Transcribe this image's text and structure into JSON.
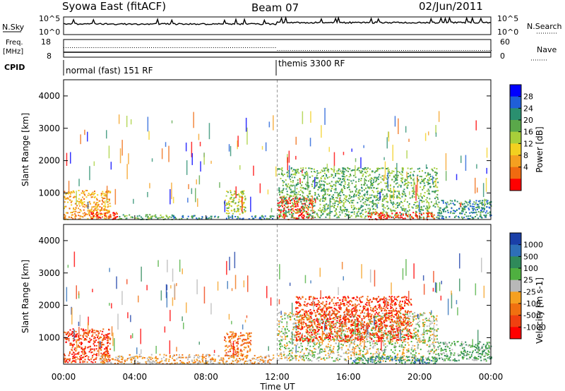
{
  "header": {
    "title": "Syowa East (fitACF)",
    "beam": "Beam 07",
    "date": "02/Jun/2011"
  },
  "strips": {
    "nsky_label": "N.Sky",
    "nsky_ticks": [
      "10^5",
      "10^0"
    ],
    "nsearch_label": "N.Search",
    "nsearch_ticks": [
      "10^5",
      "10^0"
    ],
    "freq_label": "Freq.",
    "freq_unit": "[MHz]",
    "freq_ticks": [
      "18",
      "8"
    ],
    "nave_label": "Nave",
    "nave_ticks": [
      "60",
      "0"
    ],
    "cpid_label": "CPID",
    "cpid_segments": [
      {
        "label": "normal (fast) 151 RF",
        "start_hour": 0,
        "end_hour": 12
      },
      {
        "label": "themis 3300 RF",
        "start_hour": 12,
        "end_hour": 24
      }
    ]
  },
  "chart_data": [
    {
      "type": "heatmap",
      "name": "power",
      "ylabel": "Slant Range [km]",
      "xlim": [
        0,
        24
      ],
      "ylim": [
        180,
        4500
      ],
      "yticks": [
        "1000",
        "2000",
        "3000",
        "4000"
      ],
      "colorbar": {
        "label": "Power [dB]",
        "ticks": [
          "4",
          "8",
          "12",
          "16",
          "20",
          "24",
          "28"
        ],
        "colors": [
          "#0000ff",
          "#1f5fd8",
          "#2a8f6f",
          "#5aa84a",
          "#a8cf3a",
          "#f2d020",
          "#f5a020",
          "#f06a10",
          "#ff0000"
        ]
      },
      "regions": [
        {
          "t0": 0.0,
          "t1": 2.6,
          "r0": 200,
          "r1": 1100,
          "level": 6
        },
        {
          "t0": 1.5,
          "t1": 3.0,
          "r0": 200,
          "r1": 420,
          "level": 8
        },
        {
          "t0": 3.0,
          "t1": 6.2,
          "r0": 200,
          "r1": 350,
          "level": 3
        },
        {
          "t0": 6.0,
          "t1": 11.8,
          "r0": 200,
          "r1": 320,
          "level": 2
        },
        {
          "t0": 9.0,
          "t1": 10.2,
          "r0": 350,
          "r1": 1100,
          "level": 4
        },
        {
          "t0": 12.0,
          "t1": 14.0,
          "r0": 200,
          "r1": 900,
          "level": 8
        },
        {
          "t0": 12.0,
          "t1": 21.0,
          "r0": 250,
          "r1": 1800,
          "level": 3
        },
        {
          "t0": 17.0,
          "t1": 20.8,
          "r0": 200,
          "r1": 420,
          "level": 8
        },
        {
          "t0": 21.0,
          "t1": 24.0,
          "r0": 220,
          "r1": 800,
          "level": 2
        }
      ]
    },
    {
      "type": "heatmap",
      "name": "velocity",
      "ylabel": "Slant Range [km]",
      "xlabel": "Time UT",
      "xlim": [
        0,
        24
      ],
      "ylim": [
        180,
        4500
      ],
      "yticks": [
        "1000",
        "2000",
        "3000",
        "4000"
      ],
      "xticks": [
        "00:00",
        "04:00",
        "08:00",
        "12:00",
        "16:00",
        "20:00",
        "00:00"
      ],
      "colorbar": {
        "label": "Velocity [m s-1]",
        "ticks": [
          "1000",
          "500",
          "100",
          "25",
          "-25",
          "-100",
          "-500",
          "-1000"
        ],
        "colors": [
          "#1a3fa8",
          "#2e6fb8",
          "#2f8a5a",
          "#4fb040",
          "#b8b8b8",
          "#f5a020",
          "#f07010",
          "#f04010",
          "#ff0000"
        ]
      },
      "regions": [
        {
          "t0": 0.0,
          "t1": 2.6,
          "r0": 250,
          "r1": 1300,
          "level": 7
        },
        {
          "t0": 2.0,
          "t1": 11.8,
          "r0": 200,
          "r1": 500,
          "level": 5
        },
        {
          "t0": 9.0,
          "t1": 10.5,
          "r0": 400,
          "r1": 1200,
          "level": 6
        },
        {
          "t0": 12.0,
          "t1": 21.0,
          "r0": 300,
          "r1": 1800,
          "level": 4
        },
        {
          "t0": 13.0,
          "t1": 19.5,
          "r0": 900,
          "r1": 2300,
          "level": 7
        },
        {
          "t0": 16.0,
          "t1": 21.0,
          "r0": 200,
          "r1": 450,
          "level": 2
        },
        {
          "t0": 21.0,
          "t1": 24.0,
          "r0": 300,
          "r1": 900,
          "level": 3
        }
      ]
    }
  ]
}
